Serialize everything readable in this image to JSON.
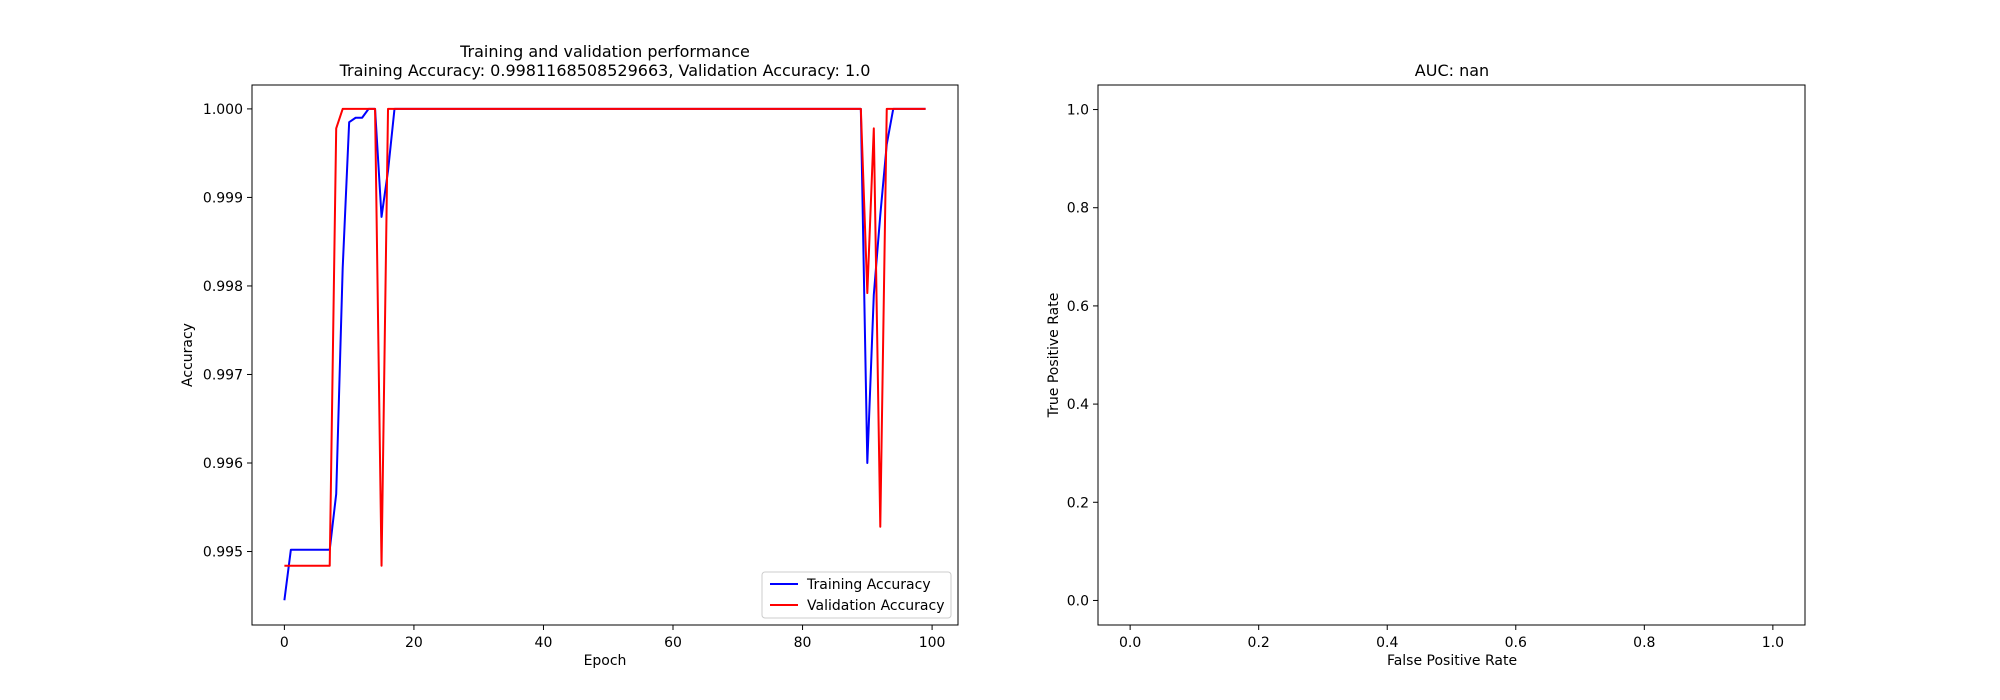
{
  "chart_data": [
    {
      "type": "line",
      "title": "Training and validation performance",
      "subtitle": "Training Accuracy: 0.9981168508529663, Validation Accuracy: 1.0",
      "xlabel": "Epoch",
      "ylabel": "Accuracy",
      "xlim": [
        -5,
        104
      ],
      "ylim": [
        0.99417,
        1.00027
      ],
      "xticks": [
        0,
        20,
        40,
        60,
        80,
        100
      ],
      "xtick_labels": [
        "0",
        "20",
        "40",
        "60",
        "80",
        "100"
      ],
      "yticks": [
        0.995,
        0.996,
        0.997,
        0.998,
        0.999,
        1.0
      ],
      "ytick_labels": [
        "0.995",
        "0.996",
        "0.997",
        "0.998",
        "0.999",
        "1.000"
      ],
      "grid": false,
      "legend_position": "lower right",
      "series": [
        {
          "name": "Training Accuracy",
          "color": "#0000ff",
          "points": [
            [
              0,
              0.99445
            ],
            [
              1,
              0.99502
            ],
            [
              2,
              0.99502
            ],
            [
              3,
              0.99502
            ],
            [
              4,
              0.99502
            ],
            [
              5,
              0.99502
            ],
            [
              6,
              0.99502
            ],
            [
              7,
              0.99502
            ],
            [
              8,
              0.99565
            ],
            [
              9,
              0.9982
            ],
            [
              10,
              0.99985
            ],
            [
              11,
              0.9999
            ],
            [
              12,
              0.9999
            ],
            [
              13,
              1.0
            ],
            [
              14,
              1.0
            ],
            [
              15,
              0.99878
            ],
            [
              16,
              0.9993
            ],
            [
              17,
              1.0
            ],
            [
              18,
              1.0
            ],
            [
              30,
              1.0
            ],
            [
              50,
              1.0
            ],
            [
              70,
              1.0
            ],
            [
              88,
              1.0
            ],
            [
              89,
              1.0
            ],
            [
              90,
              0.996
            ],
            [
              91,
              0.9979
            ],
            [
              92,
              0.9988
            ],
            [
              93,
              0.9996
            ],
            [
              94,
              1.0
            ],
            [
              95,
              1.0
            ],
            [
              96,
              1.0
            ],
            [
              97,
              1.0
            ],
            [
              98,
              1.0
            ],
            [
              99,
              1.0
            ]
          ]
        },
        {
          "name": "Validation Accuracy",
          "color": "#ff0000",
          "points": [
            [
              0,
              0.99484
            ],
            [
              1,
              0.99484
            ],
            [
              2,
              0.99484
            ],
            [
              3,
              0.99484
            ],
            [
              4,
              0.99484
            ],
            [
              5,
              0.99484
            ],
            [
              6,
              0.99484
            ],
            [
              7,
              0.99484
            ],
            [
              8,
              0.99978
            ],
            [
              9,
              1.0
            ],
            [
              10,
              1.0
            ],
            [
              11,
              1.0
            ],
            [
              12,
              1.0
            ],
            [
              13,
              1.0
            ],
            [
              14,
              1.0
            ],
            [
              15,
              0.99484
            ],
            [
              16,
              1.0
            ],
            [
              17,
              1.0
            ],
            [
              30,
              1.0
            ],
            [
              50,
              1.0
            ],
            [
              70,
              1.0
            ],
            [
              88,
              1.0
            ],
            [
              89,
              1.0
            ],
            [
              90,
              0.99792
            ],
            [
              91,
              0.99978
            ],
            [
              92,
              0.99528
            ],
            [
              93,
              1.0
            ],
            [
              94,
              1.0
            ],
            [
              95,
              1.0
            ],
            [
              96,
              1.0
            ],
            [
              97,
              1.0
            ],
            [
              98,
              1.0
            ],
            [
              99,
              1.0
            ]
          ]
        }
      ]
    },
    {
      "type": "line",
      "title": "AUC: nan",
      "xlabel": "False Positive Rate",
      "ylabel": "True Positive Rate",
      "xlim": [
        -0.05,
        1.05
      ],
      "ylim": [
        -0.05,
        1.05
      ],
      "xticks": [
        0.0,
        0.2,
        0.4,
        0.6,
        0.8,
        1.0
      ],
      "xtick_labels": [
        "0.0",
        "0.2",
        "0.4",
        "0.6",
        "0.8",
        "1.0"
      ],
      "yticks": [
        0.0,
        0.2,
        0.4,
        0.6,
        0.8,
        1.0
      ],
      "ytick_labels": [
        "0.0",
        "0.2",
        "0.4",
        "0.6",
        "0.8",
        "1.0"
      ],
      "grid": false,
      "series": []
    }
  ]
}
